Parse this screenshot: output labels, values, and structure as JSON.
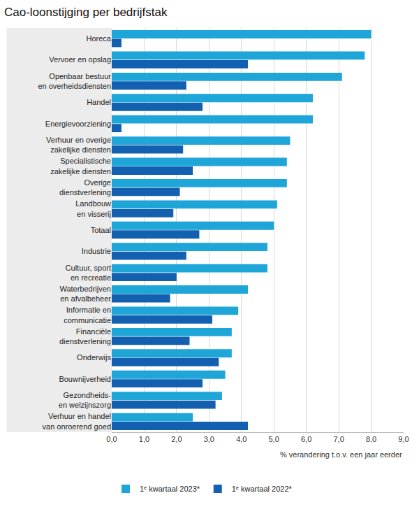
{
  "chart_data": {
    "type": "bar",
    "orientation": "horizontal",
    "title": "Cao-loonstijging per bedrijfstak",
    "xlabel": "% verandering t.o.v. een jaar eerder",
    "categories": [
      "Horeca",
      "Vervoer en opslag",
      "Openbaar bestuur\nen overheidsdiensten",
      "Handel",
      "Energievoorziening",
      "Verhuur en overige\nzakelijke diensten",
      "Specialistische\nzakelijke diensten",
      "Overige\ndienstverlening",
      "Landbouw\nen visserij",
      "Totaal",
      "Industrie",
      "Cultuur, sport\nen recreatie",
      "Waterbedrijven\nen afvalbeheer",
      "Informatie en\ncommunicatie",
      "Financiële\ndienstverlening",
      "Onderwijs",
      "Bouwnijverheid",
      "Gezondheids-\nen welzijnszorg",
      "Verhuur en handel\nvan onroerend goed"
    ],
    "series": [
      {
        "name": "1ᵉ kwartaal 2023*",
        "color": "#1ea6d9",
        "values": [
          8.0,
          7.8,
          7.1,
          6.2,
          6.2,
          5.5,
          5.4,
          5.4,
          5.1,
          5.0,
          4.8,
          4.8,
          4.2,
          3.9,
          3.7,
          3.7,
          3.5,
          3.4,
          2.5
        ]
      },
      {
        "name": "1ᵉ kwartaal 2022*",
        "color": "#1360b0",
        "values": [
          0.3,
          4.2,
          2.3,
          2.8,
          0.3,
          2.2,
          2.5,
          2.1,
          1.9,
          2.7,
          2.3,
          2.0,
          1.8,
          3.1,
          2.4,
          3.3,
          2.8,
          3.2,
          4.2
        ]
      }
    ],
    "xlim": [
      0,
      9
    ],
    "xticks": [
      {
        "value": 0,
        "label": "0,0"
      },
      {
        "value": 1,
        "label": "1,0"
      },
      {
        "value": 2,
        "label": "2,0"
      },
      {
        "value": 3,
        "label": "3,0"
      },
      {
        "value": 4,
        "label": "4,0"
      },
      {
        "value": 5,
        "label": "5,0"
      },
      {
        "value": 6,
        "label": "6,0"
      },
      {
        "value": 7,
        "label": "7,0"
      },
      {
        "value": 8,
        "label": "8,0"
      },
      {
        "value": 9,
        "label": "9,0"
      }
    ],
    "grid": true,
    "legend": "bottom left"
  }
}
